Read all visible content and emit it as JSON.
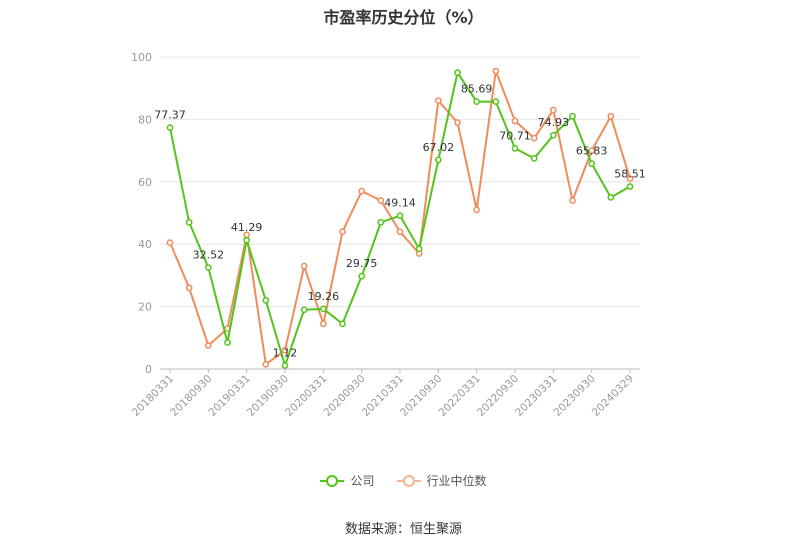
{
  "chart_data": {
    "type": "line",
    "title": "市盈率历史分位（%）",
    "x_tick_labels": [
      "20180331",
      "20180930",
      "20190331",
      "20190930",
      "20200331",
      "20200930",
      "20210331",
      "20210930",
      "20220331",
      "20220930",
      "20230331",
      "20230930",
      "20240329"
    ],
    "ylim": [
      0,
      100
    ],
    "y_ticks": [
      0,
      20,
      40,
      60,
      80,
      100
    ],
    "grid": true,
    "legend_position": "bottom",
    "series": [
      {
        "name": "公司",
        "color": "#52c41a",
        "values": [
          77.37,
          47,
          32.52,
          8.5,
          41.29,
          22,
          1.12,
          19,
          19.26,
          14.5,
          29.75,
          47,
          49.14,
          38.5,
          67.02,
          95,
          85.69,
          85.69,
          70.71,
          67.5,
          74.93,
          81,
          65.83,
          55,
          58.51
        ],
        "point_labels": [
          "77.37",
          "",
          "32.52",
          "",
          "41.29",
          "",
          "1.12",
          "",
          "19.26",
          "",
          "29.75",
          "",
          "49.14",
          "",
          "67.02",
          "",
          "85.69",
          "",
          "70.71",
          "",
          "74.93",
          "",
          "65.83",
          "",
          "58.51"
        ]
      },
      {
        "name": "行业中位数",
        "color": "#f08c5a",
        "values": [
          40.5,
          26,
          7.5,
          13,
          43,
          1.5,
          6,
          33,
          14.5,
          44,
          57,
          54,
          44,
          37,
          86,
          79,
          51,
          95.5,
          79.5,
          74,
          83,
          54,
          70,
          81,
          61
        ]
      }
    ]
  },
  "source": "数据来源：恒生聚源"
}
